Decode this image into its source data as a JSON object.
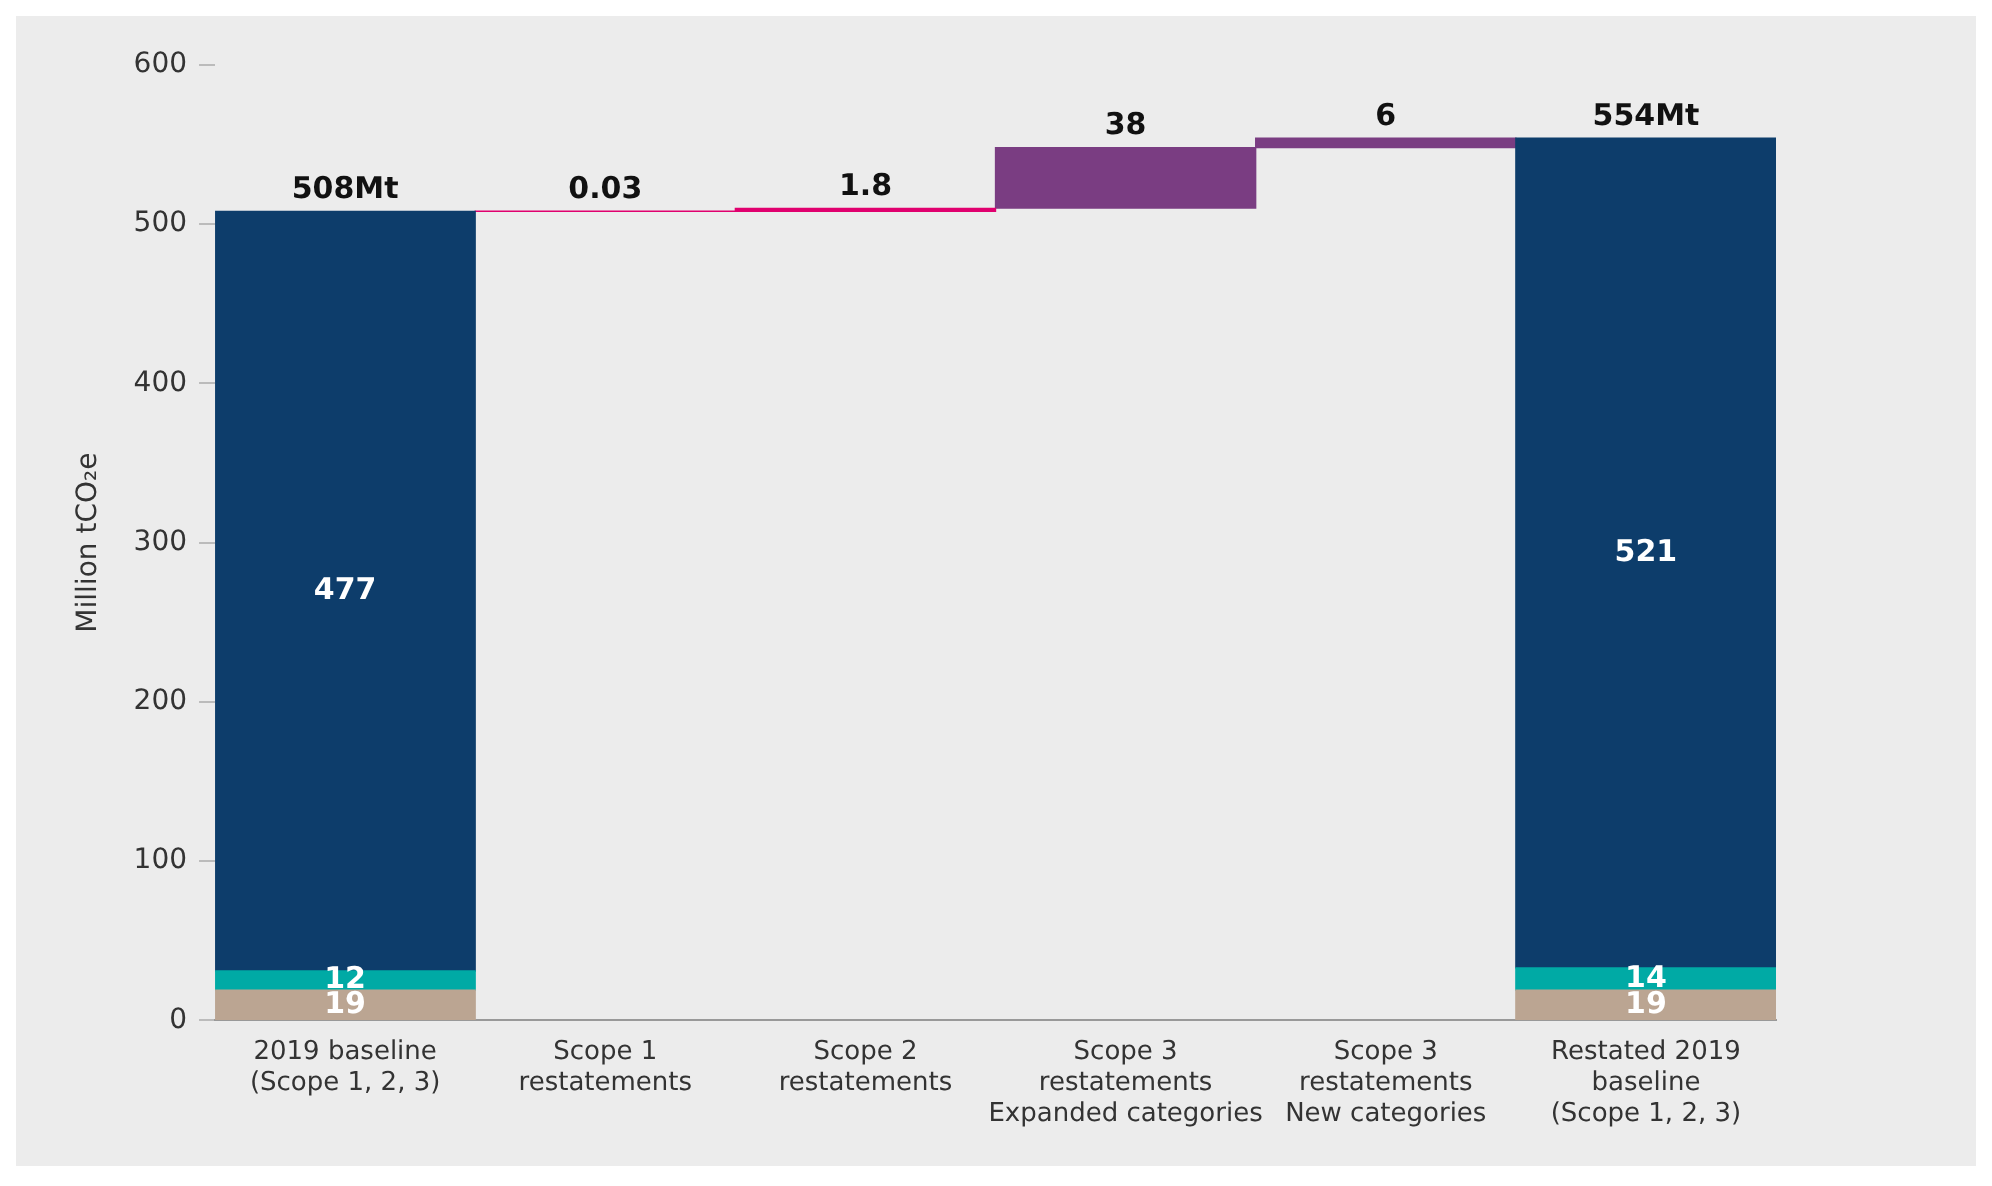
{
  "chart_data": {
    "type": "bar",
    "ylabel": "Million tCO₂e",
    "categories": [
      "2019 baseline\n(Scope 1, 2, 3)",
      "Scope 1\nrestatements",
      "Scope 2\nrestatements",
      "Scope 3\nrestatements\nExpanded categories",
      "Scope 3\nrestatements\nNew categories",
      "Restated 2019\nbaseline\n(Scope 1, 2, 3)"
    ],
    "series": [
      {
        "color": "#bba592",
        "values": [
          19,
          null,
          null,
          null,
          null,
          19
        ],
        "base": [
          0,
          null,
          null,
          null,
          null,
          0
        ],
        "value_labels": [
          "19",
          null,
          null,
          null,
          null,
          "19"
        ]
      },
      {
        "color": "#00aaa5",
        "values": [
          12,
          null,
          null,
          null,
          null,
          14
        ],
        "base": [
          19,
          null,
          null,
          null,
          null,
          19
        ],
        "value_labels": [
          "12",
          null,
          null,
          null,
          null,
          "14"
        ]
      },
      {
        "color": "#0d3d6b",
        "values": [
          477,
          null,
          null,
          null,
          null,
          521
        ],
        "base": [
          31,
          null,
          null,
          null,
          null,
          33
        ],
        "value_labels": [
          "477",
          null,
          null,
          null,
          null,
          "521"
        ]
      },
      {
        "color": "#e0006e",
        "values": [
          null,
          0.03,
          1.8,
          null,
          null,
          null
        ],
        "base": [
          null,
          508,
          508,
          null,
          null,
          null
        ],
        "value_labels": [
          null,
          "0.03",
          "1.8",
          null,
          null,
          null
        ]
      },
      {
        "color": "#7a3d82",
        "values": [
          null,
          null,
          null,
          38,
          6,
          null
        ],
        "base": [
          null,
          null,
          null,
          510,
          548,
          null
        ],
        "value_labels": [
          null,
          null,
          null,
          "38",
          "6",
          null
        ]
      }
    ],
    "totals": [
      "508Mt",
      null,
      null,
      null,
      null,
      "554Mt"
    ],
    "ylim": [
      0,
      600
    ],
    "yticks": [
      0,
      100,
      200,
      300,
      400,
      500,
      600
    ],
    "grid": false,
    "legend": false
  }
}
